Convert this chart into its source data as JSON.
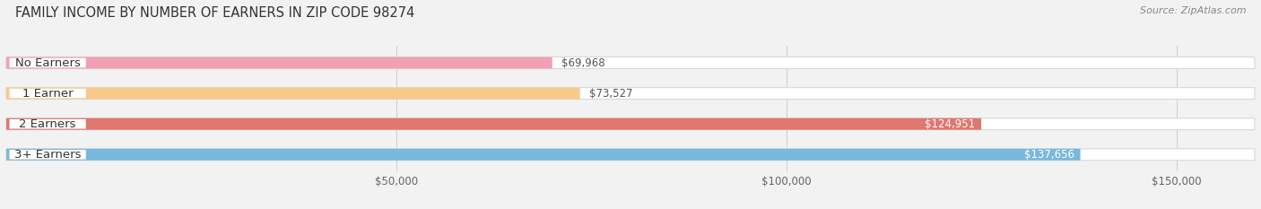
{
  "title": "FAMILY INCOME BY NUMBER OF EARNERS IN ZIP CODE 98274",
  "source": "Source: ZipAtlas.com",
  "categories": [
    "No Earners",
    "1 Earner",
    "2 Earners",
    "3+ Earners"
  ],
  "values": [
    69968,
    73527,
    124951,
    137656
  ],
  "bar_colors": [
    "#f2a0b5",
    "#f7c98b",
    "#e07870",
    "#7ab8dc"
  ],
  "value_labels": [
    "$69,968",
    "$73,527",
    "$124,951",
    "$137,656"
  ],
  "xlim_min": 0,
  "xlim_max": 160000,
  "xticks": [
    50000,
    100000,
    150000
  ],
  "xtick_labels": [
    "$50,000",
    "$100,000",
    "$150,000"
  ],
  "background_color": "#f2f2f2",
  "bar_height": 0.38,
  "bar_gap": 1.0,
  "title_fontsize": 10.5,
  "label_fontsize": 9.5,
  "value_fontsize": 8.5,
  "source_fontsize": 8
}
